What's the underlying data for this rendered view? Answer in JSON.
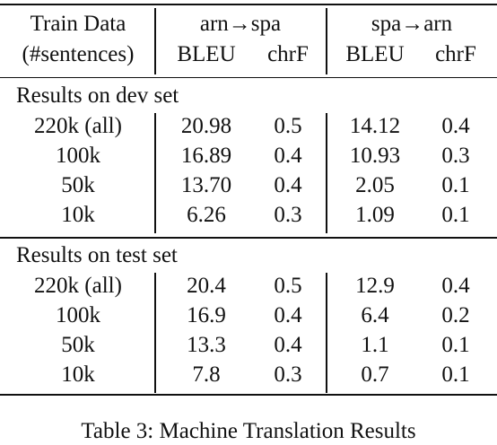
{
  "header": {
    "train_data": "Train Data",
    "num_sentences": "(#sentences)",
    "group1": "arn→spa",
    "group2": "spa→arn",
    "bleu": "BLEU",
    "chrf": "chrF"
  },
  "sections": [
    {
      "title": "Results on dev set",
      "rows": [
        {
          "train": "220k (all)",
          "arn_spa_bleu": "20.98",
          "arn_spa_chrf": "0.5",
          "spa_arn_bleu": "14.12",
          "spa_arn_chrf": "0.4"
        },
        {
          "train": "100k",
          "arn_spa_bleu": "16.89",
          "arn_spa_chrf": "0.4",
          "spa_arn_bleu": "10.93",
          "spa_arn_chrf": "0.3"
        },
        {
          "train": "50k",
          "arn_spa_bleu": "13.70",
          "arn_spa_chrf": "0.4",
          "spa_arn_bleu": "2.05",
          "spa_arn_chrf": "0.1"
        },
        {
          "train": "10k",
          "arn_spa_bleu": "6.26",
          "arn_spa_chrf": "0.3",
          "spa_arn_bleu": "1.09",
          "spa_arn_chrf": "0.1"
        }
      ]
    },
    {
      "title": "Results on test set",
      "rows": [
        {
          "train": "220k (all)",
          "arn_spa_bleu": "20.4",
          "arn_spa_chrf": "0.5",
          "spa_arn_bleu": "12.9",
          "spa_arn_chrf": "0.4"
        },
        {
          "train": "100k",
          "arn_spa_bleu": "16.9",
          "arn_spa_chrf": "0.4",
          "spa_arn_bleu": "6.4",
          "spa_arn_chrf": "0.2"
        },
        {
          "train": "50k",
          "arn_spa_bleu": "13.3",
          "arn_spa_chrf": "0.4",
          "spa_arn_bleu": "1.1",
          "spa_arn_chrf": "0.1"
        },
        {
          "train": "10k",
          "arn_spa_bleu": "7.8",
          "arn_spa_chrf": "0.3",
          "spa_arn_bleu": "0.7",
          "spa_arn_chrf": "0.1"
        }
      ]
    }
  ],
  "caption": "Table 3: Machine Translation Results"
}
